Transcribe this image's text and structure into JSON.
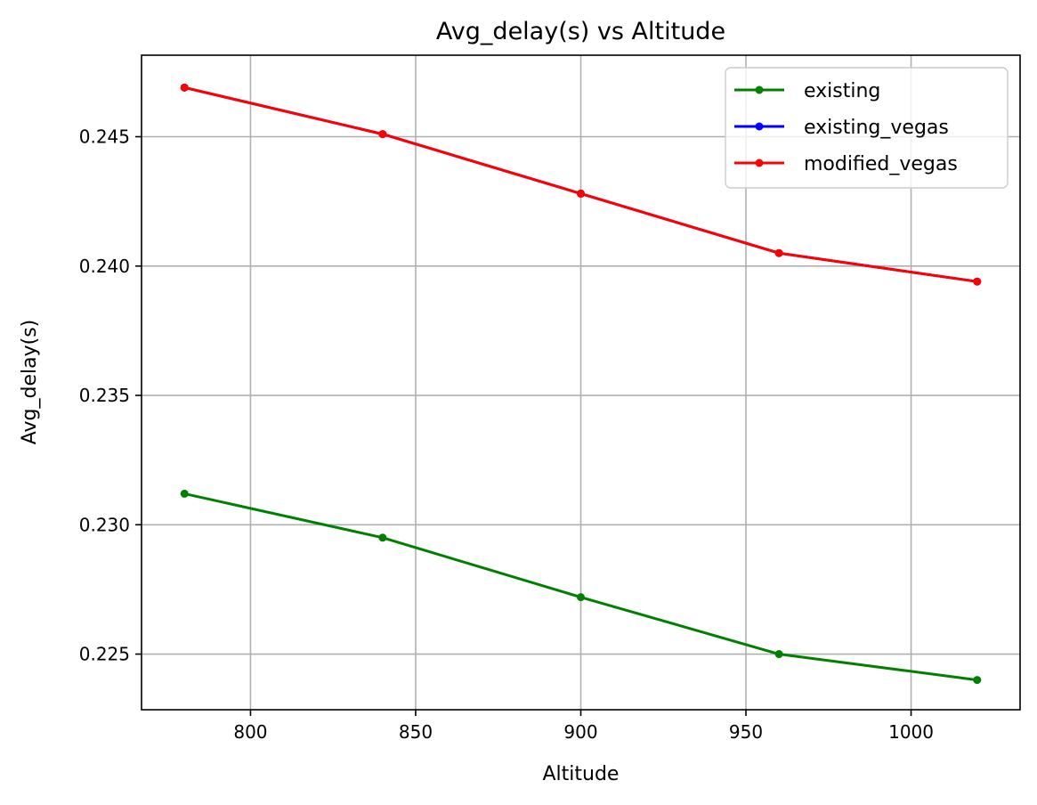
{
  "chart_data": {
    "type": "line",
    "title": "Avg_delay(s) vs Altitude",
    "xlabel": "Altitude",
    "ylabel": "Avg_delay(s)",
    "x": [
      780,
      840,
      900,
      960,
      1020
    ],
    "xlim": [
      767,
      1033
    ],
    "ylim": [
      0.22285,
      0.24815
    ],
    "xticks": [
      800,
      850,
      900,
      950,
      1000
    ],
    "yticks": [
      0.225,
      0.23,
      0.235,
      0.24,
      0.245
    ],
    "ytick_labels": [
      "0.225",
      "0.230",
      "0.235",
      "0.240",
      "0.245"
    ],
    "xtick_labels": [
      "800",
      "850",
      "900",
      "950",
      "1000"
    ],
    "grid": true,
    "legend_position": "top-right",
    "series": [
      {
        "name": "existing",
        "color": "#008000",
        "marker": "circle",
        "values": [
          0.2312,
          0.2295,
          0.2272,
          0.225,
          0.224
        ]
      },
      {
        "name": "existing_vegas",
        "color": "#0000ff",
        "marker": "circle",
        "values": [
          0.2469,
          0.2451,
          0.2428,
          0.2405,
          0.2394
        ]
      },
      {
        "name": "modified_vegas",
        "color": "#ff0000",
        "marker": "circle",
        "values": [
          0.2469,
          0.2451,
          0.2428,
          0.2405,
          0.2394
        ]
      }
    ]
  }
}
